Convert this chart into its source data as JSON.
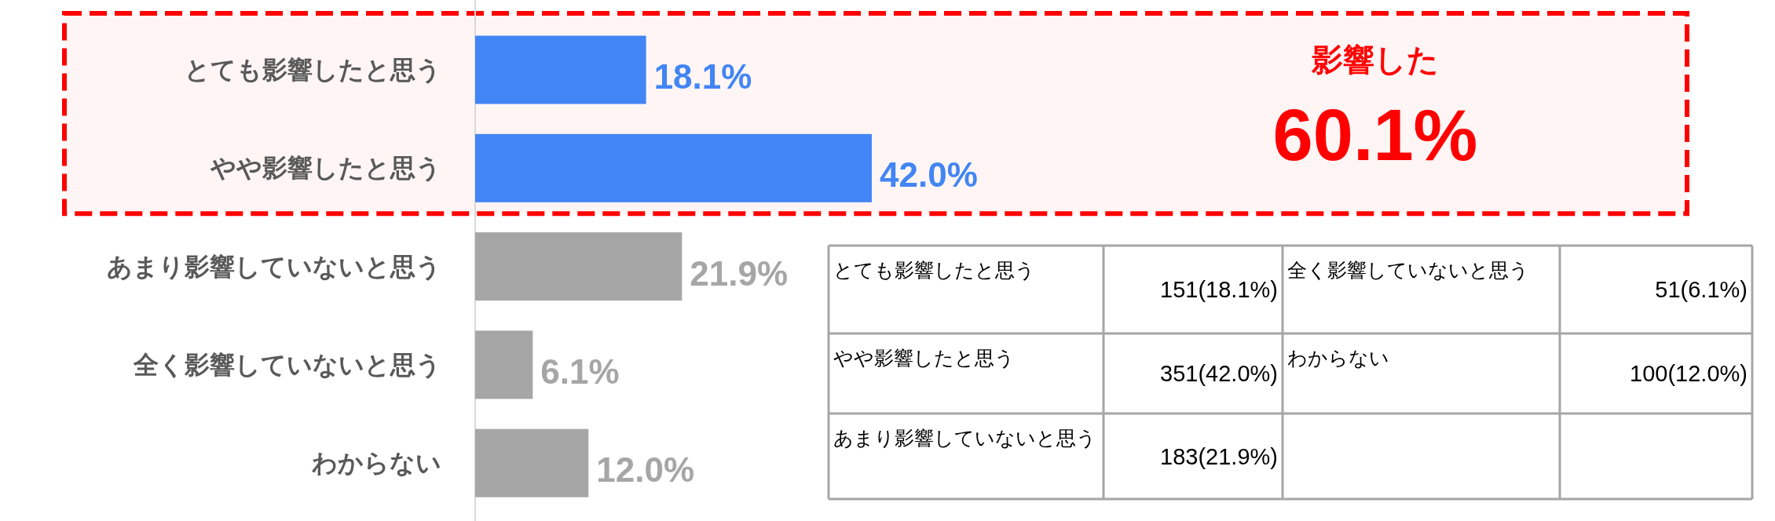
{
  "chart_data": {
    "type": "bar",
    "orientation": "horizontal",
    "categories": [
      "とても影響したと思う",
      "やや影響したと思う",
      "あまり影響していないと思う",
      "全く影響していないと思う",
      "わからない"
    ],
    "values": [
      18.1,
      42.0,
      21.9,
      6.1,
      12.0
    ],
    "colors": [
      "#4285f4",
      "#4285f4",
      "#a6a6a6",
      "#a6a6a6",
      "#a6a6a6"
    ],
    "value_labels": [
      "18.1%",
      "42.0%",
      "21.9%",
      "6.1%",
      "12.0%"
    ],
    "bands": [
      {
        "axis": "y",
        "from": "とても影響したと思う",
        "to": "やや影響したと思う",
        "label": "影響した",
        "color": "#ff0000"
      }
    ],
    "annotations": [
      "60.1%",
      "151(18.1%)",
      "351(42.0%)",
      "183(21.9%)",
      "51(6.1%)",
      "100(12.0%)"
    ]
  }
}
